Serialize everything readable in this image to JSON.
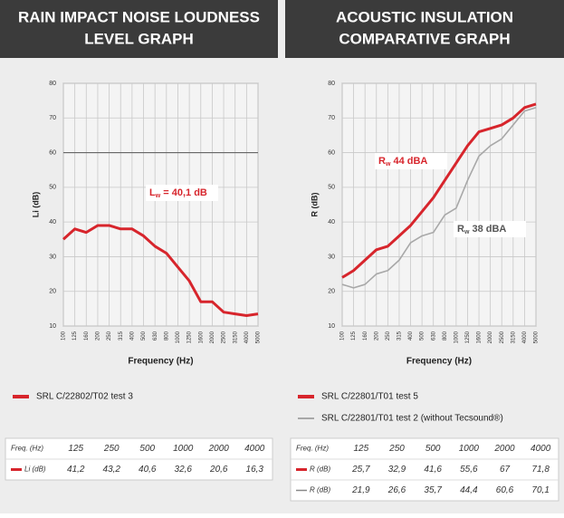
{
  "chart_data": [
    {
      "type": "line",
      "title": [
        "RAIN IMPACT NOISE LOUDNESS",
        "LEVEL GRAPH"
      ],
      "x_label": "Frequency (Hz)",
      "y_label": "Li (dB)",
      "categories": [
        "100",
        "125",
        "160",
        "200",
        "250",
        "315",
        "400",
        "500",
        "630",
        "800",
        "1000",
        "1250",
        "1600",
        "2000",
        "2500",
        "3150",
        "4000",
        "5000"
      ],
      "series": [
        {
          "name": "SRL C/22802/T02 test 3",
          "color": "#d7252c",
          "values": [
            35,
            38,
            37,
            39,
            39,
            38,
            38,
            36,
            33,
            31,
            27,
            23,
            17,
            17,
            14,
            13.5,
            13,
            13.5
          ]
        }
      ],
      "ylim": [
        10,
        80
      ],
      "yticks": [
        10,
        20,
        30,
        40,
        50,
        60,
        70,
        80
      ],
      "grid": true,
      "reference_line": 60,
      "annotations": [
        {
          "main": "L",
          "sub": "w",
          "rest": " = 40,1 dB",
          "color": "#d7252c"
        }
      ],
      "table": {
        "header": [
          "Freq. (Hz)",
          "125",
          "250",
          "500",
          "1000",
          "2000",
          "4000"
        ],
        "rows": [
          {
            "label": "Li (dB)",
            "color": "#d7252c",
            "cells": [
              "41,2",
              "43,2",
              "40,6",
              "32,6",
              "20,6",
              "16,3"
            ]
          }
        ]
      }
    },
    {
      "type": "line",
      "title": [
        "ACOUSTIC INSULATION",
        "COMPARATIVE GRAPH"
      ],
      "x_label": "Frequency (Hz)",
      "y_label": "R (dB)",
      "categories": [
        "100",
        "125",
        "160",
        "200",
        "250",
        "315",
        "400",
        "500",
        "630",
        "800",
        "1000",
        "1250",
        "1600",
        "2000",
        "2500",
        "3150",
        "4000",
        "5000"
      ],
      "series": [
        {
          "name": "SRL C/22801/T01 test 5",
          "color": "#d7252c",
          "values": [
            24,
            26,
            29,
            32,
            33,
            36,
            39,
            43,
            47,
            52,
            57,
            62,
            66,
            67,
            68,
            70,
            73,
            74
          ]
        },
        {
          "name": "SRL C/22801/T01 test 2 (without Tecsound®)",
          "color": "#a8a8a8",
          "values": [
            22,
            21,
            22,
            25,
            26,
            29,
            34,
            36,
            37,
            42,
            44,
            52,
            59,
            62,
            64,
            68,
            72,
            73
          ]
        }
      ],
      "ylim": [
        10,
        80
      ],
      "yticks": [
        10,
        20,
        30,
        40,
        50,
        60,
        70,
        80
      ],
      "grid": true,
      "annotations": [
        {
          "main": "R",
          "sub": "w",
          "rest": " 44 dBA",
          "color": "#d7252c"
        },
        {
          "main": "R",
          "sub": "w",
          "rest": " 38 dBA",
          "color": "#555555"
        }
      ],
      "table": {
        "header": [
          "Freq. (Hz)",
          "125",
          "250",
          "500",
          "1000",
          "2000",
          "4000"
        ],
        "rows": [
          {
            "label": "R (dB)",
            "color": "#d7252c",
            "cells": [
              "25,7",
              "32,9",
              "41,6",
              "55,6",
              "67",
              "71,8"
            ]
          },
          {
            "label": "R (dB)",
            "color": "#888888",
            "cells": [
              "21,9",
              "26,6",
              "35,7",
              "44,4",
              "60,6",
              "70,1"
            ]
          }
        ]
      }
    }
  ]
}
